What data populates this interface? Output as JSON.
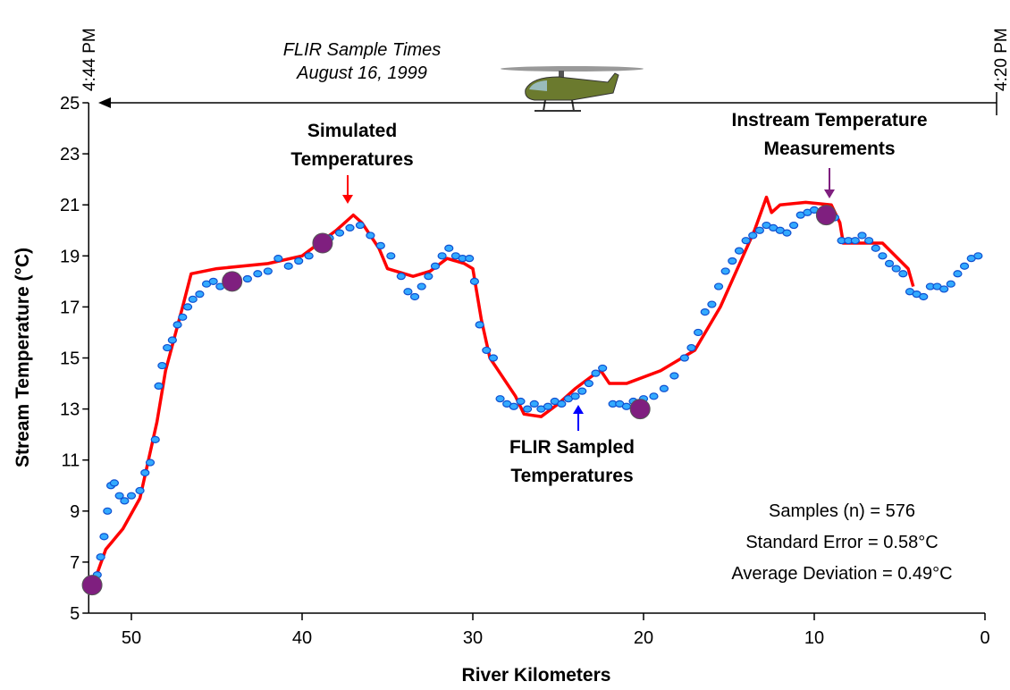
{
  "chart_data": {
    "type": "line",
    "title_lines": [
      "FLIR Sample Times",
      "August 16, 1999"
    ],
    "time_labels": [
      "4:44 PM",
      "4:20 PM"
    ],
    "xlabel": "River Kilometers",
    "ylabel": "Stream Temperature (°C)",
    "xlim": [
      52.5,
      0
    ],
    "ylim": [
      5,
      25
    ],
    "xticks": [
      50,
      40,
      30,
      20,
      10,
      0
    ],
    "yticks": [
      5,
      7,
      9,
      11,
      13,
      15,
      17,
      19,
      21,
      23,
      25
    ],
    "series": [
      {
        "type": "line",
        "color": "#ff0000",
        "x": [
          52.3,
          51.5,
          50.5,
          49.5,
          48.5,
          48,
          47,
          46.5,
          45,
          42,
          40,
          38,
          37,
          36.5,
          35.5,
          35,
          33.5,
          32.5,
          31.5,
          30.5,
          30,
          29.5,
          29,
          28,
          27.5,
          27,
          26,
          25,
          24,
          23,
          22.5,
          22,
          21,
          19,
          17,
          15.5,
          14.5,
          13.5,
          12.8,
          12.5,
          12,
          10.5,
          9,
          8.5,
          8.3,
          6,
          4.5,
          4.2
        ],
        "values": [
          6.0,
          7.5,
          8.3,
          9.5,
          12.5,
          14.5,
          17,
          18.3,
          18.5,
          18.7,
          19.0,
          20.0,
          20.6,
          20.3,
          19.3,
          18.5,
          18.2,
          18.4,
          18.9,
          18.7,
          18.5,
          16.5,
          15.0,
          14.0,
          13.5,
          12.8,
          12.7,
          13.2,
          13.8,
          14.3,
          14.5,
          14.0,
          14.0,
          14.5,
          15.3,
          17.0,
          18.5,
          20.0,
          21.3,
          20.7,
          21.0,
          21.1,
          21.0,
          20.3,
          19.5,
          19.5,
          18.5,
          17.8
        ]
      },
      {
        "type": "scatter",
        "color": "#33aaff",
        "x": [
          52,
          51.8,
          51.6,
          51.4,
          51.2,
          51,
          50.7,
          50.4,
          50,
          49.5,
          49.2,
          48.9,
          48.6,
          48.4,
          48.2,
          47.9,
          47.6,
          47.3,
          47,
          46.7,
          46.4,
          46,
          45.6,
          45.2,
          44.8,
          44.4,
          43.8,
          43.2,
          42.6,
          42,
          41.4,
          40.8,
          40.2,
          39.6,
          39,
          38.4,
          37.8,
          37.2,
          36.6,
          36,
          35.4,
          34.8,
          34.2,
          33.8,
          33.4,
          33,
          32.6,
          32.2,
          31.8,
          31.4,
          31,
          30.6,
          30.2,
          29.9,
          29.6,
          29.2,
          28.8,
          28.4,
          28,
          27.6,
          27.2,
          26.8,
          26.4,
          26,
          25.6,
          25.2,
          24.8,
          24.4,
          24,
          23.6,
          23.2,
          22.8,
          22.4,
          21.8,
          21.4,
          21,
          20.6,
          20,
          19.4,
          18.8,
          18.2,
          17.6,
          17.2,
          16.8,
          16.4,
          16,
          15.6,
          15.2,
          14.8,
          14.4,
          14,
          13.6,
          13.2,
          12.8,
          12.4,
          12,
          11.6,
          11.2,
          10.8,
          10.4,
          10,
          9.6,
          9.2,
          8.8,
          8.4,
          8,
          7.6,
          7.2,
          6.8,
          6.4,
          6,
          5.6,
          5.2,
          4.8,
          4.4,
          4,
          3.6,
          3.2,
          2.8,
          2.4,
          2,
          1.6,
          1.2,
          0.8,
          0.4
        ],
        "values": [
          6.5,
          7.2,
          8.0,
          9.0,
          10.0,
          10.1,
          9.6,
          9.4,
          9.6,
          9.8,
          10.5,
          10.9,
          11.8,
          13.9,
          14.7,
          15.4,
          15.7,
          16.3,
          16.6,
          17.0,
          17.3,
          17.5,
          17.9,
          18.0,
          17.8,
          18.1,
          18.0,
          18.1,
          18.3,
          18.4,
          18.9,
          18.6,
          18.8,
          19.0,
          19.3,
          19.7,
          19.9,
          20.1,
          20.2,
          19.8,
          19.4,
          19.0,
          18.2,
          17.6,
          17.4,
          17.8,
          18.2,
          18.6,
          19.0,
          19.3,
          19.0,
          18.9,
          18.9,
          18.0,
          16.3,
          15.3,
          15.0,
          13.4,
          13.2,
          13.1,
          13.3,
          13.0,
          13.2,
          13.0,
          13.1,
          13.3,
          13.2,
          13.4,
          13.5,
          13.7,
          14.0,
          14.4,
          14.6,
          13.2,
          13.2,
          13.1,
          13.3,
          13.4,
          13.5,
          13.8,
          14.3,
          15.0,
          15.4,
          16.0,
          16.8,
          17.1,
          17.8,
          18.4,
          18.8,
          19.2,
          19.6,
          19.8,
          20.0,
          20.2,
          20.1,
          20.0,
          19.9,
          20.2,
          20.6,
          20.7,
          20.8,
          20.7,
          20.6,
          20.5,
          19.6,
          19.6,
          19.6,
          19.8,
          19.6,
          19.3,
          19.0,
          18.7,
          18.5,
          18.3,
          17.6,
          17.5,
          17.4,
          17.8,
          17.8,
          17.7,
          17.9,
          18.3,
          18.6,
          18.9,
          19.0
        ]
      },
      {
        "type": "scatter",
        "color": "#7f1f7f",
        "x": [
          52.3,
          44.1,
          38.8,
          20.2,
          9.3
        ],
        "values": [
          6.1,
          18.0,
          19.5,
          13.0,
          20.6
        ]
      }
    ],
    "annotations": [
      {
        "lines": [
          "Simulated",
          "Temperatures"
        ],
        "color": "#ff0000"
      },
      {
        "lines": [
          "Instream Temperature",
          "Measurements"
        ],
        "color": "#7f1f7f"
      },
      {
        "lines": [
          "FLIR Sampled",
          "Temperatures"
        ],
        "color": "#0000ff"
      }
    ],
    "stats": [
      "Samples (n) = 576",
      "Standard Error = 0.58°C",
      "Average Deviation = 0.49°C"
    ]
  }
}
